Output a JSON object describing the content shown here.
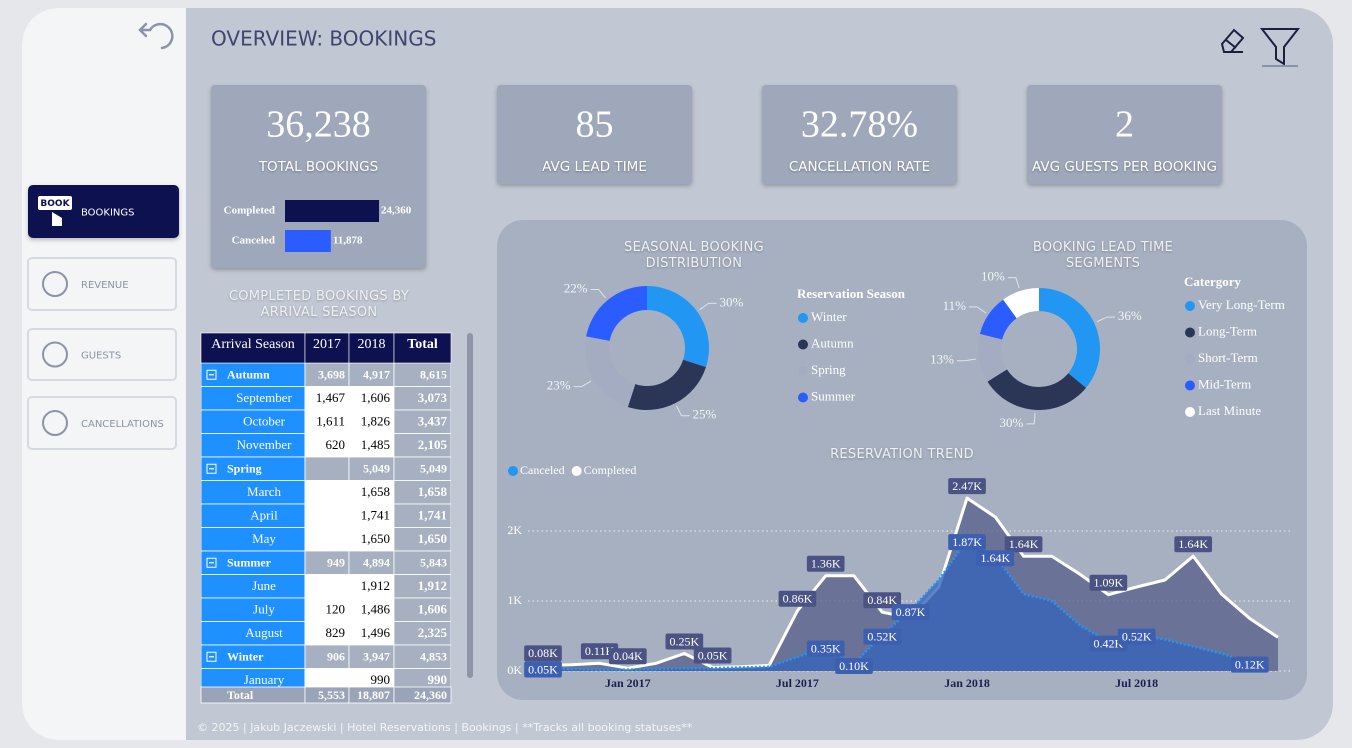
{
  "header": {
    "title": "OVERVIEW: BOOKINGS"
  },
  "nav": [
    {
      "label": "BOOKINGS",
      "icon_text": "BOOK",
      "active": true
    },
    {
      "label": "REVENUE"
    },
    {
      "label": "GUESTS"
    },
    {
      "label": "CANCELLATIONS"
    }
  ],
  "kpis": [
    {
      "value": "36,238",
      "label": "TOTAL BOOKINGS"
    },
    {
      "value": "85",
      "label": "AVG LEAD TIME"
    },
    {
      "value": "32.78%",
      "label": "CANCELLATION RATE"
    },
    {
      "value": "2",
      "label": "AVG GUESTS PER BOOKING"
    }
  ],
  "status_bars": {
    "type": "hbar",
    "categories": [
      "Completed",
      "Canceled"
    ],
    "values": [
      24360,
      11878
    ],
    "value_labels": [
      "24,360",
      "11,878"
    ],
    "colors": [
      "#0d1150",
      "#2a5cff"
    ]
  },
  "table": {
    "title": "COMPLETED BOOKINGS BY ARRIVAL SEASON",
    "columns": [
      "Arrival Season",
      "2017",
      "2018",
      "Total"
    ],
    "rows": [
      {
        "cells": [
          "Autumn",
          "3,698",
          "4,917",
          "8,615"
        ],
        "group": true
      },
      {
        "cells": [
          "September",
          "1,467",
          "1,606",
          "3,073"
        ]
      },
      {
        "cells": [
          "October",
          "1,611",
          "1,826",
          "3,437"
        ]
      },
      {
        "cells": [
          "November",
          "620",
          "1,485",
          "2,105"
        ]
      },
      {
        "cells": [
          "Spring",
          null,
          "5,049",
          "5,049"
        ],
        "group": true
      },
      {
        "cells": [
          "March",
          null,
          "1,658",
          "1,658"
        ]
      },
      {
        "cells": [
          "April",
          null,
          "1,741",
          "1,741"
        ]
      },
      {
        "cells": [
          "May",
          null,
          "1,650",
          "1,650"
        ]
      },
      {
        "cells": [
          "Summer",
          "949",
          "4,894",
          "5,843"
        ],
        "group": true
      },
      {
        "cells": [
          "June",
          null,
          "1,912",
          "1,912"
        ]
      },
      {
        "cells": [
          "July",
          "120",
          "1,486",
          "1,606"
        ]
      },
      {
        "cells": [
          "August",
          "829",
          "1,496",
          "2,325"
        ]
      },
      {
        "cells": [
          "Winter",
          "906",
          "3,947",
          "4,853"
        ],
        "group": true
      },
      {
        "cells": [
          "January",
          null,
          "990",
          "990"
        ]
      }
    ],
    "total": [
      "Total",
      "5,553",
      "18,807",
      "24,360"
    ]
  },
  "seasonal_chart": {
    "type": "pie",
    "title": "SEASONAL BOOKING DISTRIBUTION",
    "legend_title": "Reservation Season",
    "categories": [
      "Winter",
      "Autumn",
      "Spring",
      "Summer"
    ],
    "values": [
      30,
      25,
      23,
      22
    ],
    "value_labels": [
      "30%",
      "25%",
      "23%",
      "22%"
    ],
    "colors": [
      "#2196f3",
      "#2b3556",
      "#a3acc0",
      "#2a5cff"
    ]
  },
  "lead_time_chart": {
    "type": "pie",
    "title": "BOOKING LEAD TIME SEGMENTS",
    "legend_title": "Catergory",
    "categories": [
      "Very Long-Term",
      "Long-Term",
      "Short-Term",
      "Mid-Term",
      "Last Minute"
    ],
    "values": [
      36,
      30,
      13,
      11,
      10
    ],
    "value_labels": [
      "36%",
      "30%",
      "13%",
      "11%",
      "10%"
    ],
    "colors": [
      "#2196f3",
      "#2b3556",
      "#a3acc0",
      "#2a5cff",
      "#ffffff"
    ]
  },
  "trend_chart": {
    "type": "line",
    "title": "RESERVATION TREND",
    "x": [
      "2016-10",
      "2016-11",
      "2016-12",
      "2017-01",
      "2017-02",
      "2017-03",
      "2017-04",
      "2017-05",
      "2017-06",
      "2017-07",
      "2017-08",
      "2017-09",
      "2017-10",
      "2017-11",
      "2017-12",
      "2018-01",
      "2018-02",
      "2018-03",
      "2018-04",
      "2018-05",
      "2018-06",
      "2018-07",
      "2018-08",
      "2018-09",
      "2018-10",
      "2018-11",
      "2018-12"
    ],
    "xlim": [
      "2016-10",
      "2018-12"
    ],
    "xticks": [
      {
        "value": "2017-01",
        "label": "Jan 2017"
      },
      {
        "value": "2017-07",
        "label": "Jul 2017"
      },
      {
        "value": "2018-01",
        "label": "Jan 2018"
      },
      {
        "value": "2018-07",
        "label": "Jul 2018"
      }
    ],
    "ylim": [
      0,
      2600
    ],
    "yticks": [
      {
        "value": 0,
        "label": "0K"
      },
      {
        "value": 1000,
        "label": "1K"
      },
      {
        "value": 2000,
        "label": "2K"
      }
    ],
    "grid": true,
    "series": [
      {
        "name": "Completed",
        "color": "#ffffff",
        "area_color": "rgba(88,96,140,0.78)",
        "label_color": "#4b5385",
        "values": [
          80,
          90,
          110,
          40,
          110,
          250,
          50,
          60,
          80,
          860,
          1360,
          1360,
          840,
          760,
          1200,
          2470,
          2200,
          1640,
          1640,
          1380,
          1090,
          1200,
          1300,
          1640,
          1100,
          750,
          480
        ],
        "value_labels": [
          "0.08K",
          null,
          "0.11K",
          "0.04K",
          null,
          "0.25K",
          "0.05K",
          null,
          null,
          "0.86K",
          "1.36K",
          null,
          "0.84K",
          null,
          null,
          "2.47K",
          null,
          "1.64K",
          null,
          null,
          "1.09K",
          null,
          null,
          "1.64K",
          null,
          null,
          null
        ]
      },
      {
        "name": "Canceled",
        "color": "#2196f3",
        "area_color": "rgba(55,100,185,0.8)",
        "label_color": "#3d5fb0",
        "values": [
          50,
          30,
          20,
          20,
          30,
          40,
          40,
          50,
          60,
          200,
          350,
          100,
          520,
          870,
          1300,
          1870,
          1640,
          1100,
          1000,
          650,
          420,
          520,
          450,
          350,
          250,
          120,
          null
        ],
        "value_labels": [
          "0.05K",
          null,
          null,
          null,
          null,
          null,
          null,
          null,
          null,
          null,
          "0.35K",
          "0.10K",
          "0.52K",
          "0.87K",
          null,
          "1.87K",
          "1.64K",
          null,
          null,
          null,
          "0.42K",
          "0.52K",
          null,
          null,
          null,
          "0.12K",
          null
        ]
      }
    ],
    "legend_order": [
      "Canceled",
      "Completed"
    ]
  },
  "footer": "© 2025 | Jakub Jaczewski | Hotel Reservations | Bookings | **Tracks all booking statuses**"
}
